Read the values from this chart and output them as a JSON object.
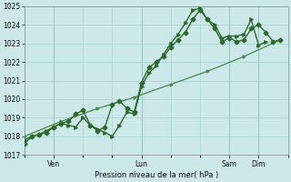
{
  "xlabel": "Pression niveau de la mer( hPa )",
  "bg_color": "#cce8e8",
  "grid_color": "#aad4d4",
  "line_color": "#2d6a2d",
  "trend_color": "#4a8a4a",
  "ylim": [
    1017,
    1025
  ],
  "yticks": [
    1017,
    1018,
    1019,
    1020,
    1021,
    1022,
    1023,
    1024,
    1025
  ],
  "xlim": [
    0,
    216
  ],
  "x_tick_positions": [
    24,
    96,
    168,
    192
  ],
  "x_tick_labels": [
    "Ven",
    "Lun",
    "Sam",
    "Dim"
  ],
  "x_minor_positions": [
    0,
    24,
    48,
    72,
    96,
    120,
    144,
    168,
    192,
    216
  ],
  "line1_x": [
    0,
    6,
    12,
    18,
    24,
    30,
    36,
    42,
    48,
    54,
    60,
    66,
    72,
    78,
    84,
    90,
    96,
    102,
    108,
    114,
    120,
    126,
    132,
    138,
    144,
    150,
    156,
    162,
    168,
    174,
    180,
    186,
    192,
    198,
    204,
    210
  ],
  "line1_y": [
    1017.6,
    1018.0,
    1018.1,
    1018.2,
    1018.5,
    1018.7,
    1018.8,
    1019.2,
    1019.4,
    1018.6,
    1018.3,
    1018.5,
    1019.7,
    1019.9,
    1019.5,
    1019.3,
    1020.9,
    1021.7,
    1022.0,
    1022.3,
    1022.8,
    1023.2,
    1023.6,
    1024.3,
    1024.8,
    1024.3,
    1023.8,
    1023.1,
    1023.3,
    1023.1,
    1023.2,
    1023.8,
    1024.0,
    1023.6,
    1023.1,
    1023.2
  ],
  "line2_x": [
    0,
    6,
    12,
    18,
    24,
    30,
    36,
    42,
    48,
    54,
    60,
    66,
    72,
    78,
    84,
    90,
    96,
    102,
    108,
    114,
    120,
    126,
    132,
    138,
    144,
    150,
    156,
    162,
    168,
    174,
    180,
    186,
    192,
    198
  ],
  "line2_y": [
    1017.8,
    1018.0,
    1018.1,
    1018.3,
    1018.5,
    1018.7,
    1018.6,
    1018.5,
    1019.0,
    1018.6,
    1018.4,
    1018.2,
    1018.0,
    1018.6,
    1019.3,
    1019.2,
    1020.7,
    1021.4,
    1021.8,
    1022.4,
    1023.0,
    1023.5,
    1024.1,
    1024.8,
    1024.9,
    1024.3,
    1024.0,
    1023.3,
    1023.4,
    1023.4,
    1023.5,
    1024.3,
    1022.9,
    1023.1
  ],
  "line3_x": [
    0,
    30,
    60,
    90,
    120,
    150,
    180,
    210
  ],
  "line3_y": [
    1018.0,
    1018.8,
    1019.5,
    1020.1,
    1020.8,
    1021.5,
    1022.3,
    1023.2
  ],
  "marker_size": 2.5,
  "linewidth": 1.0,
  "trend_linewidth": 0.9
}
